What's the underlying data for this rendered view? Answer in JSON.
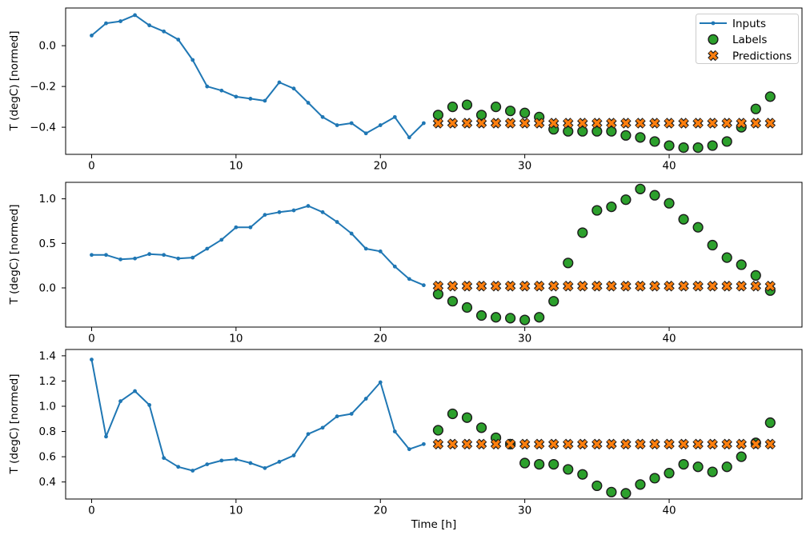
{
  "figure": {
    "xlabel": "Time [h]",
    "ylabel": "T (degC) [normed]",
    "background": "#ffffff"
  },
  "legend": {
    "position": "upper right of first subplot",
    "entries": [
      {
        "label": "Inputs",
        "marker": "line-with-dot",
        "color": "#1f77b4",
        "edge": "#1f77b4"
      },
      {
        "label": "Labels",
        "marker": "circle",
        "color": "#2ca02c",
        "edge": "#1c1c1c"
      },
      {
        "label": "Predictions",
        "marker": "x",
        "color": "#ff7f0e",
        "edge": "#1c1c1c"
      }
    ]
  },
  "chart_data": [
    {
      "type": "line",
      "title": "",
      "xlabel": "",
      "ylabel": "T (degC) [normed]",
      "xlim": [
        -1.8,
        49.2
      ],
      "ylim": [
        -0.533,
        0.185
      ],
      "grid": false,
      "xticks": {
        "values": [
          0,
          10,
          20,
          30,
          40
        ],
        "labels": [
          "0",
          "10",
          "20",
          "30",
          "40"
        ]
      },
      "yticks": {
        "values": [
          0.0,
          -0.2,
          -0.4
        ],
        "labels": [
          "0.0",
          "−0.2",
          "−0.4"
        ]
      },
      "series": [
        {
          "name": "Inputs",
          "style": "line",
          "color": "#1f77b4",
          "x": [
            0,
            1,
            2,
            3,
            4,
            5,
            6,
            7,
            8,
            9,
            10,
            11,
            12,
            13,
            14,
            15,
            16,
            17,
            18,
            19,
            20,
            21,
            22,
            23
          ],
          "y": [
            0.05,
            0.11,
            0.12,
            0.15,
            0.1,
            0.07,
            0.03,
            -0.07,
            -0.2,
            -0.22,
            -0.25,
            -0.26,
            -0.27,
            -0.18,
            -0.21,
            -0.28,
            -0.35,
            -0.39,
            -0.38,
            -0.43,
            -0.39,
            -0.35,
            -0.45,
            -0.38
          ]
        },
        {
          "name": "Labels",
          "style": "scatter_circle",
          "color": "#2ca02c",
          "edge": "#1c1c1c",
          "x": [
            24,
            25,
            26,
            27,
            28,
            29,
            30,
            31,
            32,
            33,
            34,
            35,
            36,
            37,
            38,
            39,
            40,
            41,
            42,
            43,
            44,
            45,
            46,
            47
          ],
          "y": [
            -0.34,
            -0.3,
            -0.29,
            -0.34,
            -0.3,
            -0.32,
            -0.33,
            -0.35,
            -0.41,
            -0.42,
            -0.42,
            -0.42,
            -0.42,
            -0.44,
            -0.45,
            -0.47,
            -0.49,
            -0.5,
            -0.5,
            -0.49,
            -0.47,
            -0.4,
            -0.31,
            -0.25
          ]
        },
        {
          "name": "Predictions",
          "style": "scatter_x",
          "color": "#ff7f0e",
          "edge": "#1c1c1c",
          "x": [
            24,
            25,
            26,
            27,
            28,
            29,
            30,
            31,
            32,
            33,
            34,
            35,
            36,
            37,
            38,
            39,
            40,
            41,
            42,
            43,
            44,
            45,
            46,
            47
          ],
          "y": [
            -0.38,
            -0.38,
            -0.38,
            -0.38,
            -0.38,
            -0.38,
            -0.38,
            -0.38,
            -0.38,
            -0.38,
            -0.38,
            -0.38,
            -0.38,
            -0.38,
            -0.38,
            -0.38,
            -0.38,
            -0.38,
            -0.38,
            -0.38,
            -0.38,
            -0.38,
            -0.38,
            -0.38
          ]
        }
      ]
    },
    {
      "type": "line",
      "title": "",
      "xlabel": "",
      "ylabel": "T (degC) [normed]",
      "xlim": [
        -1.8,
        49.2
      ],
      "ylim": [
        -0.44,
        1.185
      ],
      "grid": false,
      "xticks": {
        "values": [
          0,
          10,
          20,
          30,
          40
        ],
        "labels": [
          "0",
          "10",
          "20",
          "30",
          "40"
        ]
      },
      "yticks": {
        "values": [
          1.0,
          0.5,
          0.0
        ],
        "labels": [
          "1.0",
          "0.5",
          "0.0"
        ]
      },
      "series": [
        {
          "name": "Inputs",
          "style": "line",
          "color": "#1f77b4",
          "x": [
            0,
            1,
            2,
            3,
            4,
            5,
            6,
            7,
            8,
            9,
            10,
            11,
            12,
            13,
            14,
            15,
            16,
            17,
            18,
            19,
            20,
            21,
            22,
            23
          ],
          "y": [
            0.37,
            0.37,
            0.32,
            0.33,
            0.38,
            0.37,
            0.33,
            0.34,
            0.44,
            0.54,
            0.68,
            0.68,
            0.82,
            0.85,
            0.87,
            0.92,
            0.85,
            0.74,
            0.61,
            0.44,
            0.41,
            0.24,
            0.1,
            0.03
          ]
        },
        {
          "name": "Labels",
          "style": "scatter_circle",
          "color": "#2ca02c",
          "edge": "#1c1c1c",
          "x": [
            24,
            25,
            26,
            27,
            28,
            29,
            30,
            31,
            32,
            33,
            34,
            35,
            36,
            37,
            38,
            39,
            40,
            41,
            42,
            43,
            44,
            45,
            46,
            47
          ],
          "y": [
            -0.07,
            -0.15,
            -0.22,
            -0.31,
            -0.33,
            -0.34,
            -0.36,
            -0.33,
            -0.15,
            0.28,
            0.62,
            0.87,
            0.91,
            0.99,
            1.11,
            1.04,
            0.95,
            0.77,
            0.68,
            0.48,
            0.34,
            0.26,
            0.14,
            -0.03
          ]
        },
        {
          "name": "Predictions",
          "style": "scatter_x",
          "color": "#ff7f0e",
          "edge": "#1c1c1c",
          "x": [
            24,
            25,
            26,
            27,
            28,
            29,
            30,
            31,
            32,
            33,
            34,
            35,
            36,
            37,
            38,
            39,
            40,
            41,
            42,
            43,
            44,
            45,
            46,
            47
          ],
          "y": [
            0.02,
            0.02,
            0.02,
            0.02,
            0.02,
            0.02,
            0.02,
            0.02,
            0.02,
            0.02,
            0.02,
            0.02,
            0.02,
            0.02,
            0.02,
            0.02,
            0.02,
            0.02,
            0.02,
            0.02,
            0.02,
            0.02,
            0.02,
            0.02
          ]
        }
      ]
    },
    {
      "type": "line",
      "title": "",
      "xlabel": "Time [h]",
      "ylabel": "T (degC) [normed]",
      "xlim": [
        -1.8,
        49.2
      ],
      "ylim": [
        0.265,
        1.45
      ],
      "grid": false,
      "xticks": {
        "values": [
          0,
          10,
          20,
          30,
          40
        ],
        "labels": [
          "0",
          "10",
          "20",
          "30",
          "40"
        ]
      },
      "yticks": {
        "values": [
          1.4,
          1.2,
          1.0,
          0.8,
          0.6,
          0.4
        ],
        "labels": [
          "1.4",
          "1.2",
          "1.0",
          "0.8",
          "0.6",
          "0.4"
        ]
      },
      "series": [
        {
          "name": "Inputs",
          "style": "line",
          "color": "#1f77b4",
          "x": [
            0,
            1,
            2,
            3,
            4,
            5,
            6,
            7,
            8,
            9,
            10,
            11,
            12,
            13,
            14,
            15,
            16,
            17,
            18,
            19,
            20,
            21,
            22,
            23
          ],
          "y": [
            1.37,
            0.76,
            1.04,
            1.12,
            1.01,
            0.59,
            0.52,
            0.49,
            0.54,
            0.57,
            0.58,
            0.55,
            0.51,
            0.56,
            0.61,
            0.78,
            0.83,
            0.92,
            0.94,
            1.06,
            1.19,
            0.8,
            0.66,
            0.7
          ]
        },
        {
          "name": "Labels",
          "style": "scatter_circle",
          "color": "#2ca02c",
          "edge": "#1c1c1c",
          "x": [
            24,
            25,
            26,
            27,
            28,
            29,
            30,
            31,
            32,
            33,
            34,
            35,
            36,
            37,
            38,
            39,
            40,
            41,
            42,
            43,
            44,
            45,
            46,
            47
          ],
          "y": [
            0.81,
            0.94,
            0.91,
            0.83,
            0.75,
            0.7,
            0.55,
            0.54,
            0.54,
            0.5,
            0.46,
            0.37,
            0.32,
            0.31,
            0.38,
            0.43,
            0.47,
            0.54,
            0.52,
            0.48,
            0.52,
            0.6,
            0.71,
            0.87
          ]
        },
        {
          "name": "Predictions",
          "style": "scatter_x",
          "color": "#ff7f0e",
          "edge": "#1c1c1c",
          "x": [
            24,
            25,
            26,
            27,
            28,
            29,
            30,
            31,
            32,
            33,
            34,
            35,
            36,
            37,
            38,
            39,
            40,
            41,
            42,
            43,
            44,
            45,
            46,
            47
          ],
          "y": [
            0.7,
            0.7,
            0.7,
            0.7,
            0.7,
            0.7,
            0.7,
            0.7,
            0.7,
            0.7,
            0.7,
            0.7,
            0.7,
            0.7,
            0.7,
            0.7,
            0.7,
            0.7,
            0.7,
            0.7,
            0.7,
            0.7,
            0.7,
            0.7
          ]
        }
      ]
    }
  ]
}
